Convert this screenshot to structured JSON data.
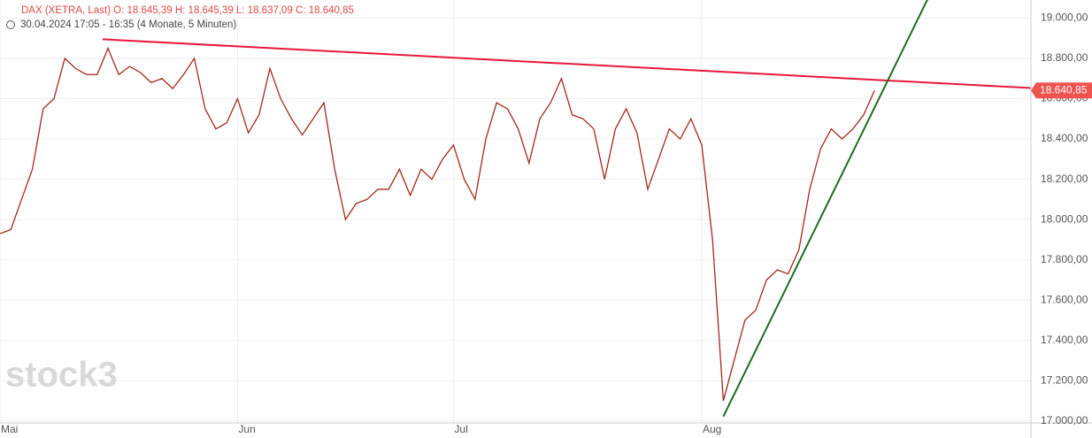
{
  "chart_data": {
    "type": "line",
    "title": "DAX (XETRA, Last)  O: 18.645,39  H: 18.645,39  L: 18.637,09  C: 18.640,85",
    "subtitle": "30.04.2024 17:05 - 16:35  (4 Monate, 5 Minuten)",
    "watermark": "stock3",
    "categories": [
      "Mai",
      null,
      null,
      null,
      null,
      null,
      null,
      null,
      null,
      null,
      null,
      null,
      null,
      null,
      null,
      null,
      null,
      null,
      null,
      null,
      null,
      null,
      "Jun",
      null,
      null,
      null,
      null,
      null,
      null,
      null,
      null,
      null,
      null,
      null,
      null,
      null,
      null,
      null,
      null,
      null,
      null,
      null,
      "Jul",
      null,
      null,
      null,
      null,
      null,
      null,
      null,
      null,
      null,
      null,
      null,
      null,
      null,
      null,
      null,
      null,
      null,
      null,
      null,
      null,
      null,
      null,
      "Aug",
      null,
      null,
      null,
      null,
      null,
      null,
      null,
      null,
      null,
      null,
      null,
      null,
      null,
      null,
      null,
      null,
      null,
      null,
      null,
      null,
      null,
      null,
      null,
      null,
      null,
      null,
      null,
      null,
      null,
      null
    ],
    "series": [
      {
        "name": "DAX",
        "color": "#a3281c",
        "values": [
          17930,
          17950,
          18100,
          18250,
          18550,
          18600,
          18800,
          18750,
          18720,
          18720,
          18850,
          18720,
          18760,
          18730,
          18680,
          18700,
          18650,
          18720,
          18800,
          18550,
          18450,
          18480,
          18600,
          18430,
          18520,
          18750,
          18600,
          18500,
          18420,
          18500,
          18580,
          18250,
          18000,
          18080,
          18100,
          18150,
          18150,
          18250,
          18120,
          18250,
          18200,
          18300,
          18370,
          18200,
          18100,
          18400,
          18580,
          18550,
          18450,
          18280,
          18500,
          18580,
          18700,
          18520,
          18500,
          18450,
          18200,
          18450,
          18550,
          18430,
          18150,
          18300,
          18450,
          18400,
          18500,
          18370,
          17900,
          17100,
          17300,
          17500,
          17550,
          17700,
          17750,
          17730,
          17850,
          18150,
          18350,
          18450,
          18400,
          18450,
          18520,
          18640.85,
          null,
          null,
          null,
          null,
          null,
          null,
          null,
          null,
          null,
          null,
          null,
          null,
          null,
          null
        ],
        "value_labels": [
          null,
          null,
          null,
          null,
          null,
          null,
          null,
          null,
          null,
          null,
          null,
          null,
          null,
          null,
          null,
          null,
          null,
          null,
          null,
          null,
          null,
          null,
          null,
          null,
          null,
          null,
          null,
          null,
          null,
          null,
          null,
          null,
          null,
          null,
          null,
          null,
          null,
          null,
          null,
          null,
          null,
          null,
          null,
          null,
          null,
          null,
          null,
          null,
          null,
          null,
          null,
          null,
          null,
          null,
          null,
          null,
          null,
          null,
          null,
          null,
          null,
          null,
          null,
          null,
          null,
          null,
          null,
          null,
          null,
          null,
          null,
          null,
          null,
          null,
          null,
          null,
          null,
          null,
          null,
          null,
          null,
          "18.640,85",
          null,
          null,
          null,
          null,
          null,
          null,
          null,
          null,
          null,
          null,
          null,
          null,
          null,
          null
        ]
      }
    ],
    "trendlines": [
      {
        "color": "#e8173a",
        "from": [
          9.5,
          18895
        ],
        "to": [
          95.5,
          18653
        ]
      },
      {
        "color": "#1f6b1f",
        "from": [
          67,
          17022
        ],
        "to": [
          85.9,
          19092
        ]
      }
    ],
    "ylim": [
      16990,
      19090
    ],
    "yticks": [
      {
        "value": 17000,
        "label": "17.000,00"
      },
      {
        "value": 17200,
        "label": "17.200,00"
      },
      {
        "value": 17400,
        "label": "17.400,00"
      },
      {
        "value": 17600,
        "label": "17.600,00"
      },
      {
        "value": 17800,
        "label": "17.800,00"
      },
      {
        "value": 18000,
        "label": "18.000,00"
      },
      {
        "value": 18200,
        "label": "18.200,00"
      },
      {
        "value": 18400,
        "label": "18.400,00"
      },
      {
        "value": 18600,
        "label": "18.600,00"
      },
      {
        "value": 18800,
        "label": "18.800,00"
      },
      {
        "value": 19000,
        "label": "19.000,00"
      }
    ],
    "grid": true
  }
}
